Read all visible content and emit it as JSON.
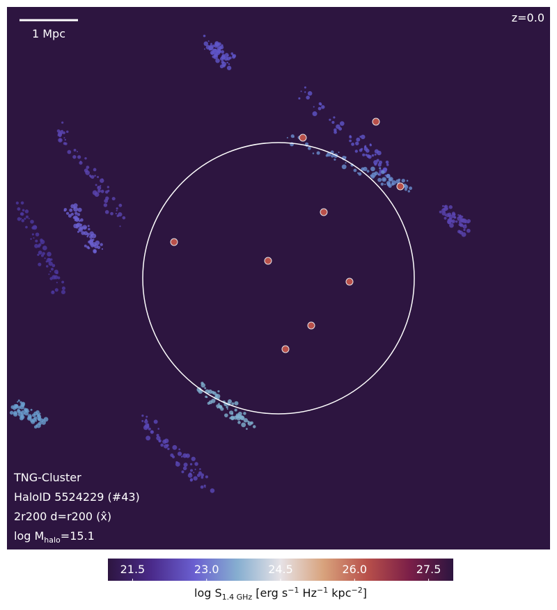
{
  "chart_data": {
    "type": "heatmap",
    "annotations": {
      "scale_bar": "1 Mpc",
      "redshift": "z=0.0",
      "simulation": "TNG-Cluster",
      "halo_id": "HaloID 5524229 (#43)",
      "projection": "2r200 d=r200 (x̂)",
      "mass": {
        "prefix": "log M",
        "sub": "halo",
        "suffix": "=15.1"
      }
    },
    "colorbar": {
      "label": {
        "base": "log S",
        "sub": "1.4 GHz",
        "unit1": " [erg s",
        "exp1": "−1",
        "unit2": " Hz",
        "exp2": "−1",
        "unit3": " kpc",
        "exp3": "−2",
        "close": "]"
      },
      "xlim": [
        21.0,
        28.0
      ],
      "xticks": [
        21.5,
        {
          "value": 23.0,
          "label": "23.0"
        },
        24.5,
        {
          "value": 26.0,
          "label": "26.0"
        },
        27.5
      ],
      "colormap": [
        "#2d1540",
        "#4a2a8a",
        "#6a5fd0",
        "#86aed0",
        "#e6e2e6",
        "#d8a27c",
        "#b8504a",
        "#7a1e48",
        "#2d1540"
      ]
    }
  }
}
